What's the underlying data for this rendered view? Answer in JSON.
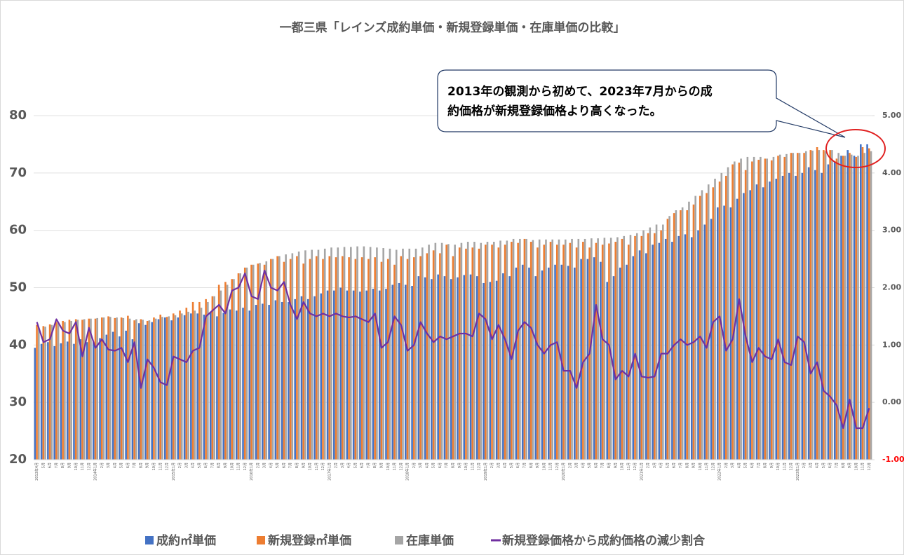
{
  "chart_data": {
    "type": "bar_line",
    "title": "一都三県「レインズ成約単価・新規登録単価・在庫単価の比較」",
    "annotation": {
      "lines": [
        "2013年の観測から初めて、2023年7月からの成",
        "約価格が新規登録価格より高くなった。"
      ]
    },
    "categories": [
      "2013年4月",
      "5月",
      "6月",
      "7月",
      "8月",
      "9月",
      "10月",
      "11月",
      "12月",
      "2014年1月",
      "2月",
      "3月",
      "4月",
      "5月",
      "6月",
      "7月",
      "8月",
      "9月",
      "10月",
      "11月",
      "12月",
      "2015年1月",
      "2月",
      "3月",
      "4月",
      "5月",
      "6月",
      "7月",
      "8月",
      "9月",
      "10月",
      "11月",
      "12月",
      "2016年1月",
      "2月",
      "3月",
      "4月",
      "5月",
      "6月",
      "7月",
      "8月",
      "9月",
      "10月",
      "11月",
      "12月",
      "2017年1月",
      "2月",
      "3月",
      "4月",
      "5月",
      "6月",
      "7月",
      "8月",
      "9月",
      "10月",
      "11月",
      "12月",
      "2018年1月",
      "2月",
      "3月",
      "4月",
      "5月",
      "6月",
      "7月",
      "8月",
      "9月",
      "10月",
      "11月",
      "12月",
      "2019年1月",
      "2月",
      "3月",
      "4月",
      "5月",
      "6月",
      "7月",
      "8月",
      "9月",
      "10月",
      "11月",
      "12月",
      "2020年1月",
      "2月",
      "3月",
      "4月",
      "5月",
      "6月",
      "7月",
      "8月",
      "9月",
      "10月",
      "11月",
      "12月",
      "2021年1月",
      "2月",
      "3月",
      "4月",
      "5月",
      "6月",
      "7月",
      "8月",
      "9月",
      "10月",
      "11月",
      "12月",
      "2022年1月",
      "2月",
      "3月",
      "4月",
      "5月",
      "6月",
      "7月",
      "8月",
      "9月",
      "10月",
      "11月",
      "12月",
      "2023年1月",
      "2月",
      "3月",
      "4月",
      "5月",
      "6月",
      "7月",
      "8月",
      "9月",
      "10月",
      "11月",
      "12月"
    ],
    "series": [
      {
        "name": "成約㎡単価",
        "color": "#4472c4",
        "values": [
          39.5,
          40.2,
          40.5,
          39.8,
          40.3,
          40.6,
          40.2,
          41.0,
          40.5,
          40.5,
          41.2,
          41.8,
          42.3,
          41.5,
          42.5,
          41.0,
          43.8,
          43.5,
          44.0,
          44.5,
          44.8,
          44.3,
          44.8,
          45.2,
          45.5,
          45.5,
          45.3,
          45.8,
          45.0,
          45.6,
          46.2,
          46.0,
          46.5,
          46.0,
          47.0,
          47.2,
          47.0,
          47.8,
          47.5,
          47.5,
          48.0,
          48.5,
          48.0,
          48.5,
          49.0,
          49.5,
          49.5,
          50.0,
          49.5,
          49.5,
          49.3,
          49.5,
          49.8,
          49.5,
          49.8,
          50.5,
          50.8,
          50.5,
          50.3,
          52.0,
          51.8,
          51.5,
          52.3,
          52.0,
          51.5,
          51.8,
          52.2,
          52.3,
          52.0,
          50.8,
          51.0,
          51.2,
          52.5,
          52.0,
          53.5,
          54.0,
          53.5,
          52.0,
          53.0,
          53.5,
          54.0,
          54.0,
          53.8,
          53.5,
          55.0,
          55.0,
          55.3,
          54.5,
          51.0,
          52.0,
          53.5,
          54.0,
          55.5,
          56.5,
          56.0,
          57.5,
          57.8,
          58.5,
          58.0,
          59.0,
          59.3,
          58.8,
          60.0,
          61.0,
          62.0,
          64.0,
          64.3,
          64.0,
          65.5,
          66.5,
          67.0,
          68.0,
          67.5,
          68.5,
          69.0,
          69.5,
          70.0,
          69.5,
          70.0,
          71.0,
          70.5,
          70.0,
          71.5,
          72.0,
          73.0,
          74.0,
          73.0,
          75.0,
          75.0
        ]
      },
      {
        "name": "新規登録㎡単価",
        "color": "#ed7d31",
        "values": [
          43.5,
          43.3,
          43.6,
          44.0,
          44.2,
          44.4,
          44.5,
          44.4,
          44.6,
          44.6,
          44.8,
          45.0,
          44.7,
          44.8,
          45.1,
          44.3,
          44.5,
          44.2,
          44.8,
          45.3,
          44.9,
          45.5,
          46.0,
          46.5,
          47.5,
          47.5,
          48.0,
          48.5,
          50.5,
          51.0,
          51.5,
          52.5,
          53.5,
          54.0,
          54.2,
          54.0,
          55.0,
          55.5,
          54.5,
          55.0,
          55.5,
          54.2,
          55.0,
          55.5,
          55.0,
          55.5,
          55.3,
          55.5,
          55.3,
          55.0,
          55.3,
          55.0,
          55.3,
          54.5,
          55.0,
          54.0,
          55.5,
          55.0,
          55.3,
          55.5,
          56.0,
          56.5,
          56.0,
          57.5,
          55.5,
          57.0,
          56.8,
          57.0,
          56.8,
          57.5,
          57.5,
          57.0,
          57.5,
          58.0,
          57.8,
          58.5,
          58.0,
          57.0,
          57.5,
          58.0,
          57.5,
          57.5,
          57.8,
          57.0,
          58.0,
          57.0,
          57.8,
          57.5,
          57.7,
          58.0,
          58.5,
          57.5,
          59.0,
          59.0,
          59.5,
          59.5,
          60.0,
          62.0,
          63.0,
          63.5,
          63.5,
          64.5,
          66.0,
          66.5,
          67.5,
          68.5,
          69.5,
          71.5,
          71.8,
          70.5,
          72.0,
          72.3,
          72.5,
          72.2,
          73.0,
          72.8,
          73.5,
          73.5,
          73.5,
          74.0,
          74.5,
          74.0,
          74.0,
          72.5,
          73.0,
          73.5,
          72.8,
          74.5,
          74.3
        ]
      },
      {
        "name": "在庫単価",
        "color": "#a5a5a5",
        "values": [
          43.0,
          43.2,
          43.5,
          43.8,
          44.0,
          44.2,
          44.4,
          44.5,
          44.6,
          44.7,
          44.8,
          44.9,
          44.8,
          44.7,
          44.6,
          44.5,
          44.4,
          44.3,
          44.6,
          44.9,
          45.0,
          45.2,
          45.5,
          45.8,
          46.0,
          46.5,
          47.5,
          48.5,
          49.5,
          50.5,
          51.5,
          52.5,
          53.5,
          54.0,
          54.3,
          54.6,
          55.0,
          55.5,
          55.8,
          56.0,
          56.3,
          56.5,
          56.6,
          56.6,
          56.8,
          57.0,
          57.0,
          57.1,
          57.1,
          57.2,
          57.2,
          57.1,
          57.0,
          56.9,
          56.8,
          56.6,
          56.8,
          56.8,
          56.8,
          57.0,
          57.5,
          57.8,
          57.8,
          57.6,
          57.5,
          57.8,
          58.0,
          58.0,
          57.8,
          58.0,
          58.0,
          58.2,
          58.2,
          58.5,
          58.5,
          58.5,
          58.3,
          58.4,
          58.4,
          58.4,
          58.4,
          58.4,
          58.5,
          58.5,
          58.5,
          58.6,
          58.6,
          58.7,
          58.7,
          58.8,
          59.0,
          59.2,
          59.5,
          60.0,
          60.5,
          61.0,
          61.0,
          62.5,
          63.5,
          64.0,
          65.0,
          66.0,
          67.0,
          68.0,
          69.0,
          70.0,
          71.0,
          72.0,
          72.5,
          72.8,
          72.8,
          72.8,
          72.5,
          72.8,
          73.2,
          73.3,
          73.5,
          73.5,
          73.8,
          73.9,
          74.0,
          73.8,
          74.0,
          73.5,
          73.0,
          73.2,
          73.0,
          73.5,
          73.8
        ]
      },
      {
        "name": "新規登録価格から成約価格の減少割合",
        "color": "#7030a0",
        "axis": "y2",
        "values": [
          1.4,
          1.05,
          1.1,
          1.45,
          1.25,
          1.2,
          1.4,
          0.8,
          1.3,
          0.95,
          1.1,
          0.92,
          0.9,
          0.95,
          0.7,
          1.05,
          0.25,
          0.75,
          0.6,
          0.35,
          0.3,
          0.8,
          0.75,
          0.7,
          0.9,
          0.95,
          1.5,
          1.6,
          1.7,
          1.55,
          1.95,
          2.0,
          2.25,
          1.85,
          1.8,
          2.3,
          2.0,
          1.95,
          2.1,
          1.7,
          1.45,
          1.75,
          1.55,
          1.5,
          1.55,
          1.5,
          1.55,
          1.5,
          1.48,
          1.5,
          1.45,
          1.4,
          1.55,
          0.95,
          1.05,
          1.5,
          1.35,
          0.9,
          1.0,
          1.4,
          1.2,
          1.05,
          1.15,
          1.1,
          1.15,
          1.2,
          1.2,
          1.15,
          1.55,
          1.45,
          1.1,
          1.35,
          1.1,
          0.75,
          1.25,
          1.4,
          1.3,
          1.0,
          0.85,
          1.0,
          1.05,
          0.55,
          0.55,
          0.25,
          0.7,
          0.85,
          1.7,
          1.1,
          1.0,
          0.4,
          0.55,
          0.45,
          0.85,
          0.45,
          0.43,
          0.45,
          0.85,
          0.85,
          1.0,
          1.1,
          1.0,
          1.05,
          1.15,
          0.95,
          1.4,
          1.5,
          0.9,
          1.1,
          1.8,
          1.15,
          0.7,
          0.95,
          0.8,
          0.75,
          1.1,
          0.7,
          0.65,
          1.15,
          1.05,
          0.5,
          0.7,
          0.2,
          0.1,
          -0.05,
          -0.45,
          0.05,
          -0.45,
          -0.45,
          -0.1
        ]
      }
    ],
    "ylim": [
      20,
      80
    ],
    "yticks": [
      20,
      30,
      40,
      50,
      60,
      70,
      80
    ],
    "y2lim": [
      -1,
      5
    ],
    "y2ticks": [
      {
        "value": -1,
        "label": "-1.00"
      },
      {
        "value": 0,
        "label": "0.00"
      },
      {
        "value": 1,
        "label": "1.00"
      },
      {
        "value": 2,
        "label": "2.00"
      },
      {
        "value": 3,
        "label": "3.00"
      },
      {
        "value": 4,
        "label": "4.00"
      },
      {
        "value": 5,
        "label": "5.00"
      }
    ],
    "negative_tick_color": "#ff0000",
    "grid": true,
    "legend": "bottom"
  }
}
